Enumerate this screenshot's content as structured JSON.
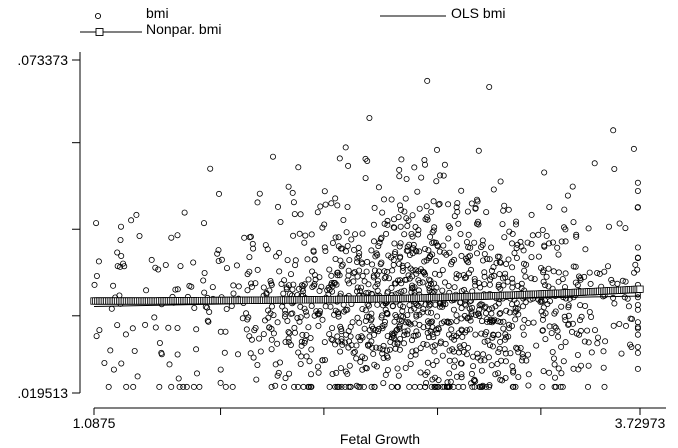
{
  "chart_data": {
    "type": "scatter",
    "xlabel": "Fetal Growth",
    "ylabel": "",
    "xlim": [
      1.0875,
      3.72973
    ],
    "ylim": [
      0.019513,
      0.073373
    ],
    "x_tick_labels": [
      "1.0875",
      "3.72973"
    ],
    "y_tick_labels": [
      ".073373",
      ".019513"
    ],
    "x_minor_ticks": [
      1.7,
      2.2,
      2.75,
      3.25
    ],
    "y_minor_ticks": [
      0.06,
      0.046,
      0.032
    ],
    "legend": {
      "placement": "top",
      "entries": [
        {
          "label": "bmi",
          "marker": "circle"
        },
        {
          "label": "OLS bmi",
          "marker": "line"
        },
        {
          "label": "Nonpar. bmi",
          "marker": "square-line"
        }
      ]
    },
    "series": [
      {
        "name": "bmi",
        "type": "scatter",
        "n_points": 1400,
        "x_center": 2.66,
        "x_spread": 0.48,
        "y_center": 0.034,
        "y_spread": 0.0085,
        "x_values_sample": [
          1.09,
          1.2,
          1.62,
          2.42,
          2.7,
          2.8,
          3.0,
          3.6,
          3.7
        ],
        "y_values_sample": [
          0.037,
          0.0305,
          0.047,
          0.064,
          0.07,
          0.0205,
          0.069,
          0.062,
          0.059
        ]
      },
      {
        "name": "OLS bmi",
        "type": "line",
        "x": [
          1.0875,
          3.72973
        ],
        "y": [
          0.0335,
          0.0352
        ]
      },
      {
        "name": "Nonpar. bmi",
        "type": "line",
        "marker": "square",
        "x": [
          1.0875,
          1.4,
          1.8,
          2.2,
          2.6,
          3.0,
          3.3,
          3.5,
          3.72973
        ],
        "y": [
          0.0344,
          0.0344,
          0.0345,
          0.0346,
          0.0348,
          0.0352,
          0.0356,
          0.0359,
          0.0363
        ]
      }
    ]
  }
}
